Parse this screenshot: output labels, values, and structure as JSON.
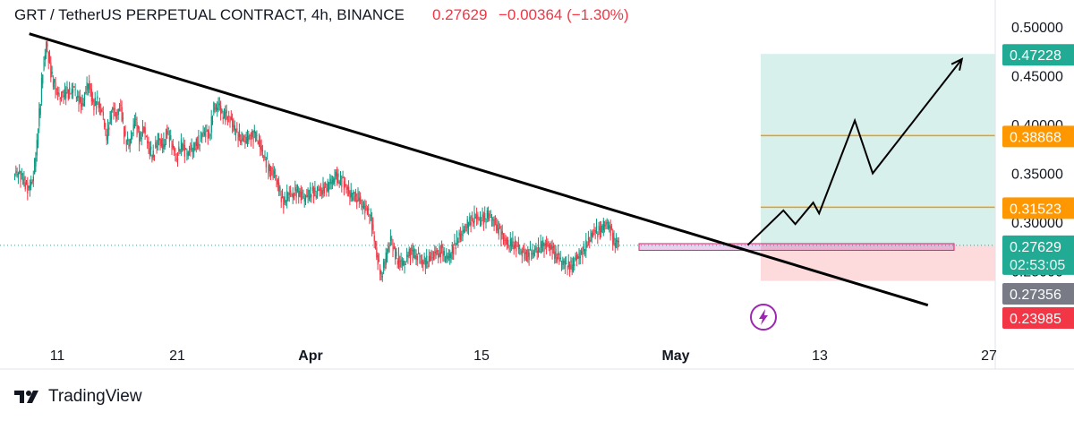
{
  "header": {
    "symbol_title": "GRT / TetherUS PERPETUAL CONTRACT, 4h, BINANCE",
    "last_price": "0.27629",
    "change": "−0.00364 (−1.30%)",
    "change_color": "#f23645"
  },
  "footer": {
    "brand": "TradingView"
  },
  "chart_data": {
    "type": "candlestick",
    "title": "GRT / TetherUS PERPETUAL CONTRACT, 4h, BINANCE",
    "y_axis": {
      "ticks": [
        "0.20000",
        "0.25000",
        "0.30000",
        "0.35000",
        "0.40000",
        "0.45000",
        "0.50000"
      ],
      "tick_values": [
        0.2,
        0.25,
        0.3,
        0.35,
        0.4,
        0.45,
        0.5
      ],
      "range": [
        0.195,
        0.51
      ]
    },
    "x_axis": {
      "ticks": [
        "11",
        "21",
        "Apr",
        "15",
        "May",
        "13",
        "27"
      ],
      "bold_ticks": [
        "Apr",
        "May"
      ]
    },
    "price_badges": [
      {
        "label": "0.47228",
        "value": 0.47228,
        "bg": "#22ab94"
      },
      {
        "label": "0.38868",
        "value": 0.38868,
        "bg": "#ff9800"
      },
      {
        "label": "0.31523",
        "value": 0.31523,
        "bg": "#ff9800"
      },
      {
        "label": "0.27629",
        "value": 0.27629,
        "bg": "#22ab94",
        "sub": "02:53:05"
      },
      {
        "label": "0.27356",
        "value": 0.27356,
        "bg": "#787b86"
      },
      {
        "label": "0.23985",
        "value": 0.23985,
        "bg": "#f23645"
      }
    ],
    "trendline": {
      "from": [
        "Mar 10",
        0.493
      ],
      "to": [
        "May 26",
        0.215
      ]
    },
    "position": {
      "entry": 0.27629,
      "target": 0.47228,
      "stop": 0.23985,
      "tp_levels": [
        0.38868,
        0.31523
      ],
      "profit_color": "#22ab94",
      "loss_color": "#f23645"
    },
    "zone": {
      "top": 0.278,
      "bottom": 0.273,
      "color": "#9c27b0"
    },
    "projection": [
      [
        "May 8",
        0.2765
      ],
      [
        "May 11",
        0.312
      ],
      [
        "May 12",
        0.298
      ],
      [
        "May 13.5",
        0.32
      ],
      [
        "May 14",
        0.309
      ],
      [
        "May 17",
        0.404
      ],
      [
        "May 18.5",
        0.35
      ],
      [
        "May 26",
        0.467
      ]
    ],
    "series": [
      {
        "name": "",
        "values": [
          0.35,
          0.343,
          0.335,
          0.342,
          0.38,
          0.442,
          0.483,
          0.452,
          0.437,
          0.428,
          0.433,
          0.432,
          0.436,
          0.423,
          0.425,
          0.445,
          0.42,
          0.423,
          0.413,
          0.386,
          0.415,
          0.41,
          0.418,
          0.384,
          0.381,
          0.405,
          0.385,
          0.397,
          0.376,
          0.368,
          0.386,
          0.375,
          0.395,
          0.38,
          0.365,
          0.38,
          0.37,
          0.373,
          0.378,
          0.385,
          0.393,
          0.388,
          0.417,
          0.42,
          0.409,
          0.409,
          0.4,
          0.391,
          0.386,
          0.384,
          0.387,
          0.389,
          0.378,
          0.365,
          0.353,
          0.348,
          0.333,
          0.32,
          0.33,
          0.328,
          0.332,
          0.325,
          0.326,
          0.332,
          0.33,
          0.333,
          0.335,
          0.339,
          0.347,
          0.344,
          0.339,
          0.33,
          0.327,
          0.325,
          0.315,
          0.312,
          0.298,
          0.266,
          0.245,
          0.263,
          0.283,
          0.265,
          0.26,
          0.257,
          0.27,
          0.266,
          0.264,
          0.259,
          0.26,
          0.267,
          0.268,
          0.271,
          0.262,
          0.268,
          0.278,
          0.287,
          0.295,
          0.3,
          0.305,
          0.302,
          0.303,
          0.308,
          0.303,
          0.294,
          0.285,
          0.276,
          0.279,
          0.276,
          0.271,
          0.265,
          0.268,
          0.271,
          0.274,
          0.276,
          0.276,
          0.27,
          0.264,
          0.258,
          0.254,
          0.255,
          0.265,
          0.268,
          0.276,
          0.285,
          0.291,
          0.29,
          0.3,
          0.296,
          0.279,
          0.276
        ]
      }
    ]
  }
}
